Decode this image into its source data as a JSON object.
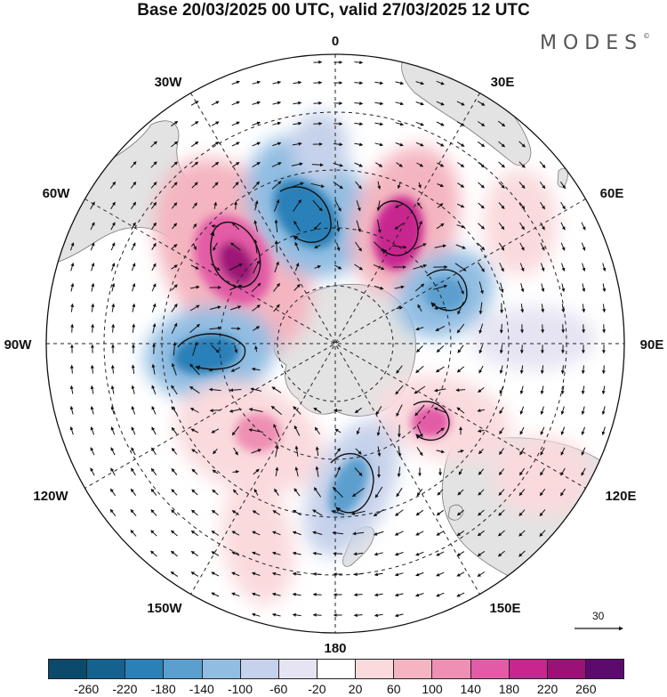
{
  "title": "Base 20/03/2025 00 UTC, valid 27/03/2025 12 UTC",
  "brand": "MODES",
  "brand_mark": "©",
  "longitude_labels": {
    "lon_0": "0",
    "lon_30e": "30E",
    "lon_60e": "60E",
    "lon_90e": "90E",
    "lon_120e": "120E",
    "lon_150e": "150E",
    "lon_180": "180",
    "lon_150w": "150W",
    "lon_120w": "120W",
    "lon_90w": "90W",
    "lon_60w": "60W",
    "lon_30w": "30W"
  },
  "reference_vector": {
    "value": "30"
  },
  "colorbar": {
    "colors": [
      "#0c4a6b",
      "#16628f",
      "#2c80b8",
      "#5b9fcf",
      "#91bde2",
      "#c6d2eb",
      "#e6e4f2",
      "#ffffff",
      "#fadadd",
      "#f4b5c0",
      "#ee8fb3",
      "#e35ba6",
      "#c8258f",
      "#9b1276",
      "#5c0a6e"
    ],
    "tick_labels": [
      "-260",
      "-220",
      "-180",
      "-140",
      "-100",
      "-60",
      "-20",
      "20",
      "60",
      "100",
      "140",
      "180",
      "220",
      "260"
    ]
  },
  "anomaly_centers": [
    {
      "sign": "positive",
      "level": 260,
      "tint": "#9b1276"
    },
    {
      "sign": "negative",
      "level": -180,
      "tint": "#2c80b8"
    },
    {
      "sign": "positive",
      "level": 220,
      "tint": "#c8258f"
    },
    {
      "sign": "negative",
      "level": -140,
      "tint": "#5b9fcf"
    },
    {
      "sign": "negative",
      "level": -180,
      "tint": "#2c80b8"
    },
    {
      "sign": "positive",
      "level": 140,
      "tint": "#e35ba6"
    },
    {
      "sign": "positive",
      "level": 140,
      "tint": "#ee8fb3"
    },
    {
      "sign": "negative",
      "level": -140,
      "tint": "#5b9fcf"
    },
    {
      "sign": "positive",
      "level": 60,
      "tint": "#fadadd"
    }
  ]
}
